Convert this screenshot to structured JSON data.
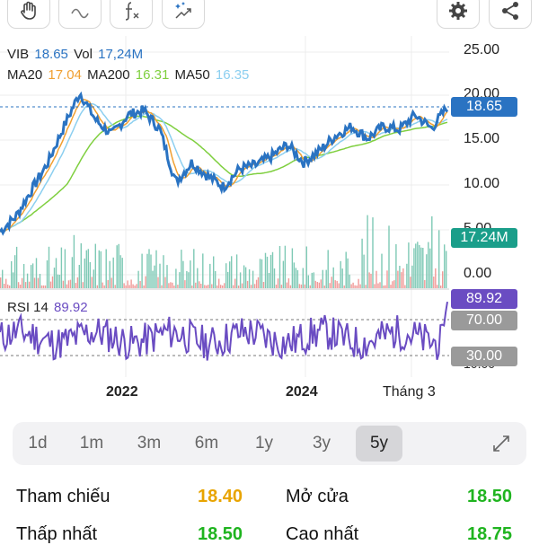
{
  "toolbar": {
    "buttons": [
      {
        "name": "hand-drag-icon"
      },
      {
        "name": "trend-line-icon"
      },
      {
        "name": "function-icon"
      },
      {
        "name": "magic-indicator-icon"
      },
      {
        "name": "gear-icon"
      },
      {
        "name": "share-icon"
      }
    ]
  },
  "legend": {
    "symbol": "VIB",
    "price": "18.65",
    "vol_label": "Vol",
    "vol_value": "17,24M",
    "ma20_label": "MA20",
    "ma20_value": "17.04",
    "ma200_label": "MA200",
    "ma200_value": "16.31",
    "ma50_label": "MA50",
    "ma50_value": "16.35",
    "rsi_label": "RSI 14",
    "rsi_value": "89.92"
  },
  "badges": {
    "price": "18.65",
    "volume": "17.24M",
    "rsi": "89.92",
    "rsi_upper": "70.00",
    "rsi_lower": "30.00"
  },
  "y_axis": [
    "25.00",
    "20.00",
    "15.00",
    "10.00",
    "5.00",
    "0.00"
  ],
  "x_axis": [
    "2022",
    "2024",
    "Tháng 3"
  ],
  "rsi_axis_partial": "10.00",
  "ranges": [
    "1d",
    "1m",
    "3m",
    "6m",
    "1y",
    "3y",
    "5y"
  ],
  "active_range": "5y",
  "expand_icon": "expand-icon",
  "stats": [
    {
      "label": "Tham chiếu",
      "value": "18.40",
      "color": "#e8a400"
    },
    {
      "label": "Mở cửa",
      "value": "18.50",
      "color": "#1fb41f"
    },
    {
      "label": "Thấp nhất",
      "value": "18.50",
      "color": "#1fb41f"
    },
    {
      "label": "Cao nhất",
      "value": "18.75",
      "color": "#1fb41f"
    }
  ],
  "colors": {
    "price_line": "#2a73c2",
    "ma20": "#f0a032",
    "ma200": "#7fcf3f",
    "ma50": "#8ccff0",
    "rsi": "#6a4cc2",
    "vol_up": "#7ec9b5",
    "vol_down": "#f09a98",
    "price_badge": "#2a73c2",
    "vol_badge": "#1a9e8a",
    "rsi_badge": "#6a4cc2",
    "level_badge": "#9a9a9a"
  },
  "chart_data": {
    "type": "line",
    "series": [
      {
        "name": "VIB",
        "approx_points": [
          4.8,
          6.5,
          9.5,
          12.5,
          16.5,
          20.3,
          17.2,
          15.6,
          17.8,
          18.3,
          16.2,
          10.3,
          12.5,
          11.0,
          9.8,
          11.8,
          12.2,
          13.2,
          14.5,
          12.5,
          13.8,
          15.5,
          16.5,
          15.2,
          16.5,
          16.2,
          17.8,
          16.3,
          18.65
        ]
      },
      {
        "name": "MA20",
        "value": 17.04
      },
      {
        "name": "MA200",
        "value": 16.31
      },
      {
        "name": "MA50",
        "value": 16.35
      }
    ],
    "ylim": [
      0,
      25
    ],
    "rsi": {
      "name": "RSI 14",
      "value": 89.92,
      "levels": [
        30,
        70
      ]
    },
    "volume_last": "17.24M"
  }
}
